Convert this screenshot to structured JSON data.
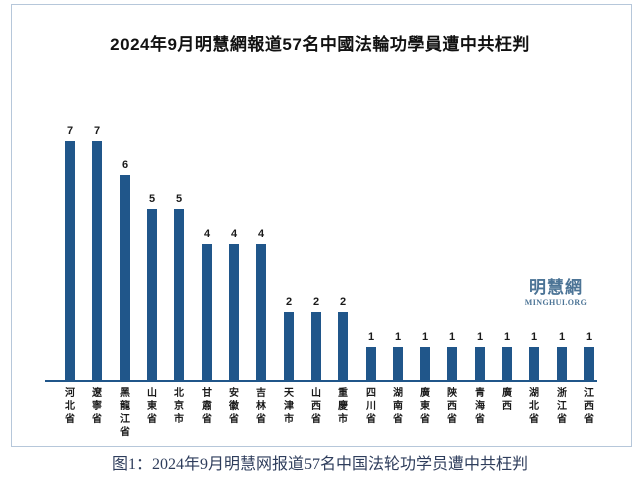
{
  "chart": {
    "title": "2024年9月明慧網報道57名中國法輪功學員遭中共枉判",
    "watermark": {
      "cjk": "明慧網",
      "latin": "MINGHUI.ORG"
    },
    "caption": "图1：2024年9月明慧网报道57名中国法轮功学员遭中共枉判",
    "colors": {
      "bar": "#20568a",
      "axis": "#20568a",
      "frame_border": "#b6c7da",
      "title_text": "#111111",
      "label_text": "#1a1a1a",
      "watermark": "#4c7496",
      "caption_text": "#2e3d5c",
      "background": "#ffffff"
    }
  },
  "chart_data": {
    "type": "bar",
    "title": "2024年9月明慧網報道57名中國法輪功學員遭中共枉判",
    "categories": [
      "河北省",
      "遼寧省",
      "黑龍江省",
      "山東省",
      "北京市",
      "甘肅省",
      "安徽省",
      "吉林省",
      "天津市",
      "山西省",
      "重慶市",
      "四川省",
      "湖南省",
      "廣東省",
      "陝西省",
      "青海省",
      "廣西",
      "湖北省",
      "浙江省",
      "江西省"
    ],
    "values": [
      7,
      7,
      6,
      5,
      5,
      4,
      4,
      4,
      2,
      2,
      2,
      1,
      1,
      1,
      1,
      1,
      1,
      1,
      1,
      1
    ],
    "total": 57,
    "xlabel": "",
    "ylabel": "",
    "ylim": [
      0,
      7.5
    ],
    "grid": false,
    "legend_position": "none",
    "value_labels": true,
    "x_label_orientation": "vertical-stacked"
  }
}
